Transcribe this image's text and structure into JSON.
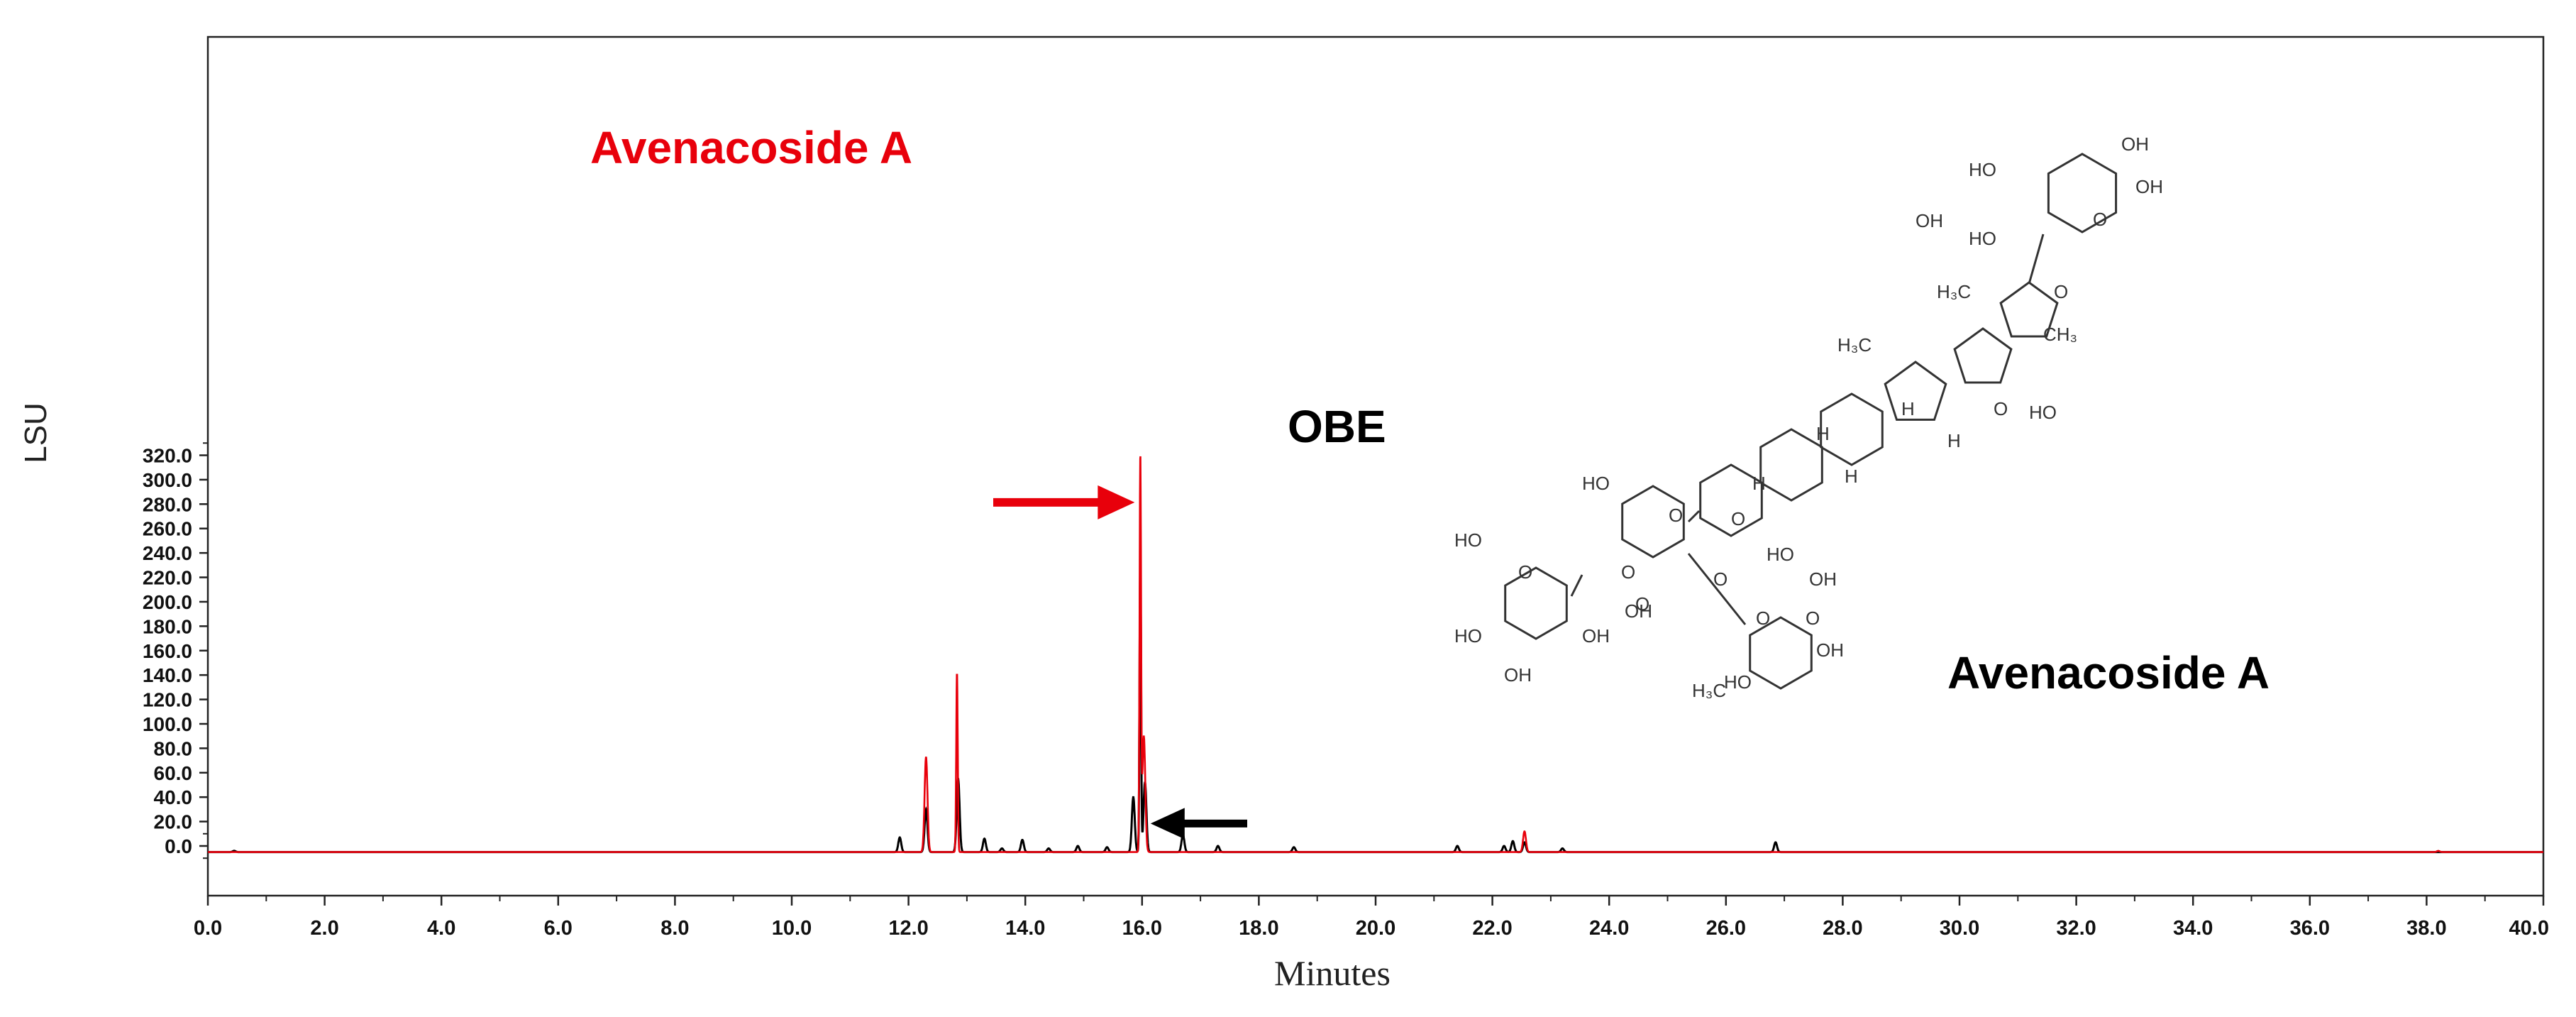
{
  "chart_data": {
    "type": "line",
    "xlabel": "Minutes",
    "ylabel": "LSU",
    "xlim": [
      0,
      40
    ],
    "ylim": [
      -15,
      330
    ],
    "grid": false,
    "x_ticks": [
      "0.0",
      "2.0",
      "4.0",
      "6.0",
      "8.0",
      "10.0",
      "12.0",
      "14.0",
      "16.0",
      "18.0",
      "20.0",
      "22.0",
      "24.0",
      "26.0",
      "28.0",
      "30.0",
      "32.0",
      "34.0",
      "36.0",
      "38.0",
      "40.0"
    ],
    "y_ticks": [
      "0.0",
      "20.0",
      "40.0",
      "60.0",
      "80.0",
      "100.0",
      "120.0",
      "140.0",
      "160.0",
      "180.0",
      "200.0",
      "220.0",
      "240.0",
      "260.0",
      "280.0",
      "300.0",
      "320.0"
    ],
    "series": [
      {
        "color": "#000000",
        "peaks": [
          {
            "x": 0.45,
            "y": 1
          },
          {
            "x": 11.85,
            "y": 12
          },
          {
            "x": 12.3,
            "y": 35
          },
          {
            "x": 12.85,
            "y": 60
          },
          {
            "x": 13.3,
            "y": 11
          },
          {
            "x": 13.6,
            "y": 3
          },
          {
            "x": 13.95,
            "y": 10
          },
          {
            "x": 14.4,
            "y": 3
          },
          {
            "x": 14.9,
            "y": 5
          },
          {
            "x": 15.4,
            "y": 4
          },
          {
            "x": 15.85,
            "y": 45
          },
          {
            "x": 15.97,
            "y": 240
          },
          {
            "x": 16.05,
            "y": 57
          },
          {
            "x": 16.7,
            "y": 14
          },
          {
            "x": 17.3,
            "y": 5
          },
          {
            "x": 18.6,
            "y": 4
          },
          {
            "x": 21.4,
            "y": 5
          },
          {
            "x": 22.2,
            "y": 5
          },
          {
            "x": 22.35,
            "y": 9
          },
          {
            "x": 22.55,
            "y": 8
          },
          {
            "x": 23.2,
            "y": 3
          },
          {
            "x": 26.85,
            "y": 8
          }
        ]
      },
      {
        "color": "#e8000b",
        "peaks": [
          {
            "x": 12.3,
            "y": 78
          },
          {
            "x": 12.83,
            "y": 147
          },
          {
            "x": 15.97,
            "y": 322
          },
          {
            "x": 16.03,
            "y": 95
          },
          {
            "x": 22.55,
            "y": 17
          },
          {
            "x": 38.2,
            "y": 1
          }
        ]
      }
    ],
    "annotations": [
      {
        "text": "Avenacoside A",
        "color": "#e8000b",
        "points_to": {
          "x": 15.97,
          "y": 300
        }
      },
      {
        "text": "OBE",
        "color": "#000000",
        "points_to": {
          "x": 16.0,
          "y": 180
        }
      },
      {
        "text": "Avenacoside A",
        "color": "#000000"
      }
    ],
    "structure_labels": [
      "OH",
      "HO",
      "HO",
      "OH",
      "H₃C",
      "H₃C",
      "CH₃",
      "H",
      "H",
      "H",
      "H",
      "H",
      "HO",
      "HO",
      "OH",
      "HO",
      "OH",
      "OH",
      "HO",
      "OH",
      "HO",
      "OH",
      "HO",
      "OH",
      "H₃C",
      "O",
      "O",
      "O",
      "O",
      "O",
      "O",
      "O",
      "O",
      "O",
      "O",
      "O"
    ]
  }
}
